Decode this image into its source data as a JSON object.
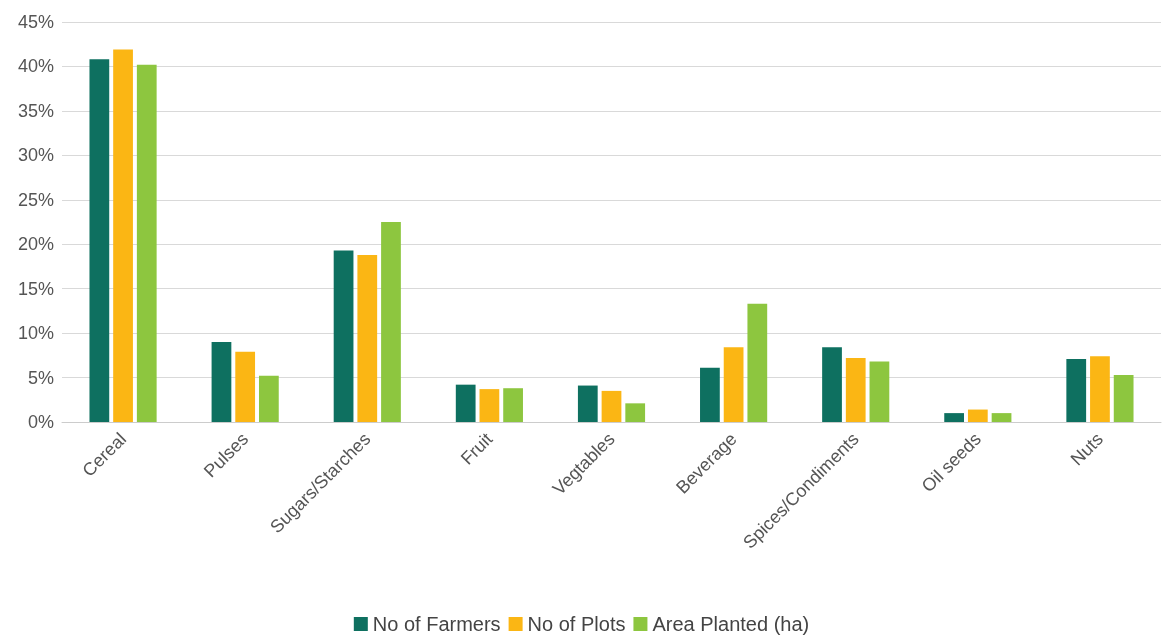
{
  "chart_data": {
    "type": "bar",
    "categories": [
      "Cereal",
      "Pulses",
      "Sugars/Starches",
      "Fruit",
      "Vegtables",
      "Beverage",
      "Spices/Condiments",
      "Oil seeds",
      "Nuts"
    ],
    "series": [
      {
        "name": "No of Farmers",
        "color": "#0e7060",
        "values": [
          40.8,
          9.0,
          19.3,
          4.2,
          4.1,
          6.1,
          8.4,
          1.0,
          7.1
        ]
      },
      {
        "name": "No of Plots",
        "color": "#fbb614",
        "values": [
          41.9,
          7.9,
          18.8,
          3.7,
          3.5,
          8.4,
          7.2,
          1.4,
          7.4
        ]
      },
      {
        "name": "Area Planted (ha)",
        "color": "#8dc63f",
        "values": [
          40.2,
          5.2,
          22.5,
          3.8,
          2.1,
          13.3,
          6.8,
          1.0,
          5.3
        ]
      }
    ],
    "ylim": [
      0,
      45
    ],
    "yticks": [
      {
        "value": 0,
        "label": "0%"
      },
      {
        "value": 5,
        "label": "5%"
      },
      {
        "value": 10,
        "label": "10%"
      },
      {
        "value": 15,
        "label": "15%"
      },
      {
        "value": 20,
        "label": "20%"
      },
      {
        "value": 25,
        "label": "25%"
      },
      {
        "value": 30,
        "label": "30%"
      },
      {
        "value": 35,
        "label": "35%"
      },
      {
        "value": 40,
        "label": "40%"
      },
      {
        "value": 45,
        "label": "45%"
      }
    ],
    "grid": "y",
    "legend": "bottom"
  }
}
